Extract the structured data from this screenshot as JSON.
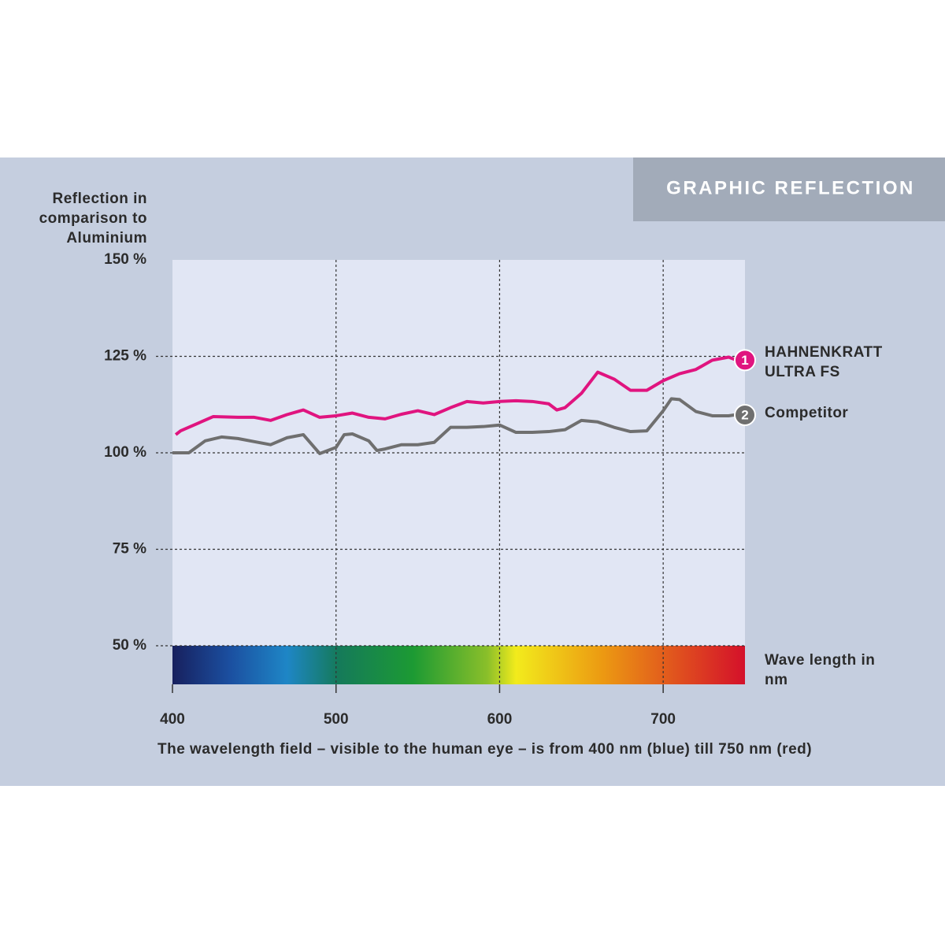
{
  "chart_data": {
    "type": "line",
    "title": "GRAPHIC REFLECTION",
    "y_label": "Reflection in comparison to Aluminium",
    "x_label": "The wavelength field – visible to the human eye – is from 400 nm (blue) till 750 nm (red)",
    "band_label": "Wave length in nm",
    "xlim": [
      400,
      750
    ],
    "ylim": [
      40,
      150
    ],
    "xticks": [
      400,
      500,
      600,
      700
    ],
    "yticks": [
      {
        "value": 150,
        "label": "150 %"
      },
      {
        "value": 125,
        "label": "125 %"
      },
      {
        "value": 100,
        "label": "100 %"
      },
      {
        "value": 75,
        "label": "75 %"
      },
      {
        "value": 50,
        "label": "50 %"
      }
    ],
    "grid": true,
    "series": [
      {
        "name": "HAHNENKRATT ULTRA FS",
        "marker_label": "1",
        "color": "#e0147f",
        "x": [
          402,
          405,
          425,
          440,
          450,
          460,
          470,
          480,
          490,
          500,
          510,
          520,
          530,
          540,
          550,
          560,
          570,
          580,
          590,
          600,
          610,
          620,
          630,
          635,
          640,
          650,
          660,
          670,
          680,
          690,
          700,
          710,
          720,
          730,
          740,
          745
        ],
        "values": [
          104.7,
          105.7,
          109.4,
          109.2,
          109.2,
          108.4,
          109.9,
          111.1,
          109.2,
          109.6,
          110.3,
          109.2,
          108.8,
          110,
          110.9,
          109.9,
          111.7,
          113.3,
          112.9,
          113.3,
          113.5,
          113.3,
          112.7,
          111.1,
          111.7,
          115.4,
          120.9,
          119.1,
          116.2,
          116.2,
          118.7,
          120.5,
          121.6,
          124,
          124.8,
          124
        ]
      },
      {
        "name": "Competitor",
        "marker_label": "2",
        "color": "#6f6f6f",
        "x": [
          400,
          410,
          420,
          430,
          440,
          450,
          460,
          470,
          480,
          490,
          500,
          505,
          510,
          520,
          525,
          530,
          540,
          550,
          560,
          570,
          580,
          590,
          600,
          610,
          620,
          630,
          640,
          650,
          660,
          670,
          680,
          690,
          700,
          705,
          710,
          720,
          730,
          740,
          745
        ],
        "values": [
          100,
          100,
          103.1,
          104.1,
          103.7,
          102.9,
          102.1,
          103.9,
          104.7,
          99.8,
          101.4,
          104.7,
          104.9,
          103.1,
          100.6,
          101,
          102.1,
          102.1,
          102.7,
          106.6,
          106.6,
          106.8,
          107.2,
          105.3,
          105.3,
          105.5,
          106,
          108.4,
          108,
          106.6,
          105.5,
          105.7,
          110.9,
          114,
          113.8,
          110.7,
          109.6,
          109.6,
          109.9
        ]
      }
    ]
  }
}
